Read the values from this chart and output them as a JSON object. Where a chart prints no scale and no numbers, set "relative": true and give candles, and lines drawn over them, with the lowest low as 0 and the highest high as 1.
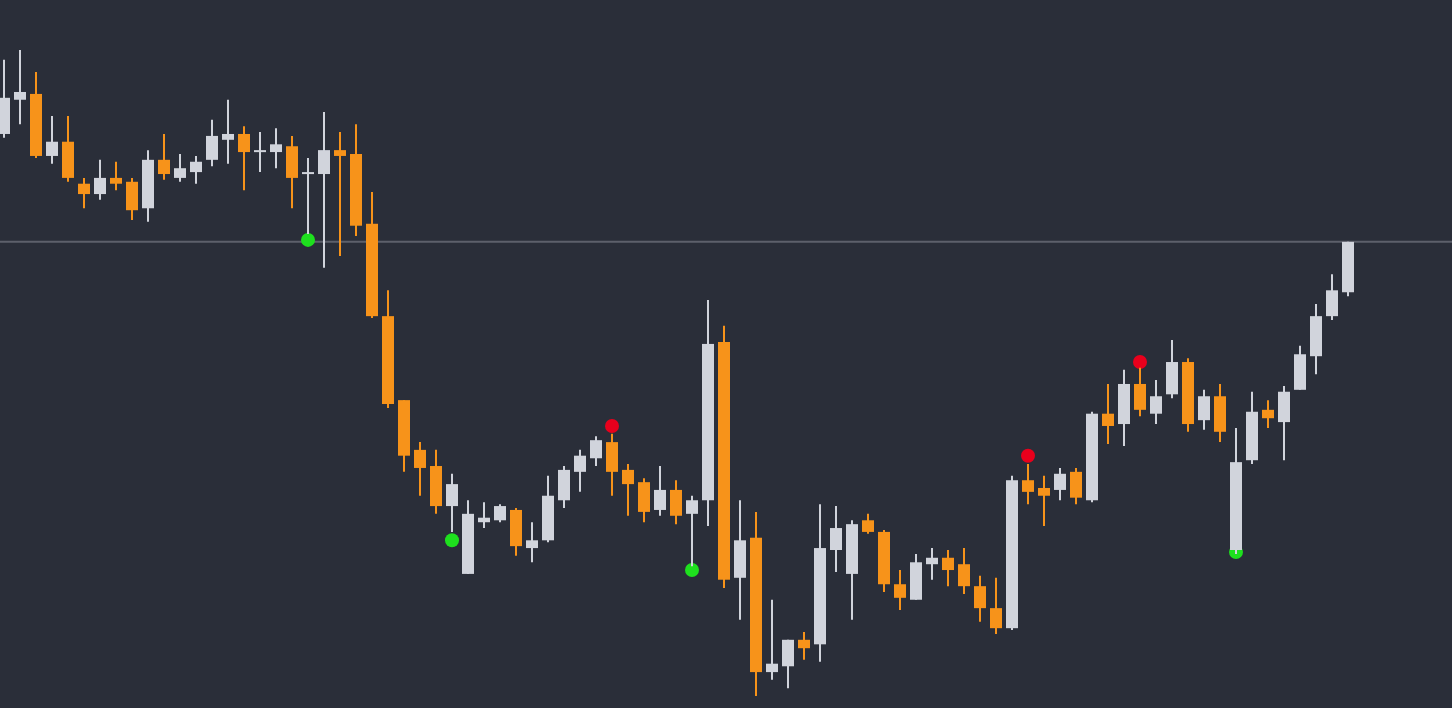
{
  "chart_data": {
    "type": "candlestick",
    "relative": true,
    "marker": "circle",
    "categories": [
      null,
      null,
      null,
      null,
      null,
      null,
      null,
      null,
      null,
      null,
      null,
      null,
      null,
      null,
      null,
      null,
      null,
      null,
      null,
      null,
      null,
      null,
      null,
      null,
      null,
      null,
      null,
      null,
      null,
      null,
      null,
      null,
      null,
      null,
      null,
      null,
      null,
      null,
      null,
      null,
      null,
      null,
      null,
      null,
      null,
      null,
      null,
      null,
      null,
      null,
      null,
      null,
      null,
      null,
      null,
      null,
      null,
      null,
      null,
      null,
      null,
      null,
      null,
      null,
      null,
      null,
      null,
      null,
      null,
      null,
      null,
      null,
      null,
      null,
      null,
      null,
      null,
      null,
      null,
      null,
      null,
      null,
      null,
      null,
      null
    ],
    "ohlc": [
      [
        0.87,
        0.985,
        0.864,
        0.926
      ],
      [
        0.923,
        1,
        0.885,
        0.935
      ],
      [
        0.932,
        0.966,
        0.833,
        0.836
      ],
      [
        0.836,
        0.898,
        0.824,
        0.858
      ],
      [
        0.858,
        0.898,
        0.796,
        0.802
      ],
      [
        0.793,
        0.802,
        0.755,
        0.777
      ],
      [
        0.777,
        0.83,
        0.768,
        0.802
      ],
      [
        0.802,
        0.827,
        0.783,
        0.793
      ],
      [
        0.796,
        0.802,
        0.737,
        0.752
      ],
      [
        0.755,
        0.845,
        0.734,
        0.83
      ],
      [
        0.83,
        0.87,
        0.799,
        0.808
      ],
      [
        0.802,
        0.839,
        0.796,
        0.817
      ],
      [
        0.811,
        0.836,
        0.793,
        0.827
      ],
      [
        0.83,
        0.892,
        0.82,
        0.867
      ],
      [
        0.861,
        0.923,
        0.824,
        0.87
      ],
      [
        0.87,
        0.882,
        0.783,
        0.842
      ],
      [
        0.842,
        0.873,
        0.811,
        0.845
      ],
      [
        0.842,
        0.879,
        0.817,
        0.854
      ],
      [
        0.851,
        0.867,
        0.755,
        0.802
      ],
      [
        0.808,
        0.833,
        0.715,
        0.811
      ],
      [
        0.808,
        0.904,
        0.663,
        0.845
      ],
      [
        0.845,
        0.873,
        0.681,
        0.836
      ],
      [
        0.839,
        0.885,
        0.712,
        0.728
      ],
      [
        0.731,
        0.78,
        0.585,
        0.588
      ],
      [
        0.588,
        0.628,
        0.446,
        0.452
      ],
      [
        0.458,
        0.458,
        0.347,
        0.372
      ],
      [
        0.381,
        0.393,
        0.31,
        0.353
      ],
      [
        0.356,
        0.381,
        0.282,
        0.294
      ],
      [
        0.294,
        0.344,
        0.254,
        0.328
      ],
      [
        0.189,
        0.303,
        0.189,
        0.282
      ],
      [
        0.269,
        0.3,
        0.26,
        0.276
      ],
      [
        0.272,
        0.297,
        0.269,
        0.294
      ],
      [
        0.288,
        0.291,
        0.217,
        0.232
      ],
      [
        0.229,
        0.269,
        0.207,
        0.241
      ],
      [
        0.241,
        0.341,
        0.238,
        0.31
      ],
      [
        0.303,
        0.356,
        0.291,
        0.35
      ],
      [
        0.347,
        0.381,
        0.316,
        0.372
      ],
      [
        0.368,
        0.402,
        0.356,
        0.396
      ],
      [
        0.393,
        0.406,
        0.31,
        0.347
      ],
      [
        0.35,
        0.359,
        0.279,
        0.328
      ],
      [
        0.331,
        0.337,
        0.269,
        0.285
      ],
      [
        0.288,
        0.356,
        0.279,
        0.319
      ],
      [
        0.319,
        0.334,
        0.266,
        0.279
      ],
      [
        0.282,
        0.31,
        0.201,
        0.303
      ],
      [
        0.303,
        0.613,
        0.263,
        0.545
      ],
      [
        0.548,
        0.573,
        0.167,
        0.18
      ],
      [
        0.183,
        0.303,
        0.118,
        0.241
      ],
      [
        0.245,
        0.285,
        0,
        0.037
      ],
      [
        0.037,
        0.149,
        0.025,
        0.05
      ],
      [
        0.046,
        0.087,
        0.012,
        0.087
      ],
      [
        0.087,
        0.099,
        0.056,
        0.074
      ],
      [
        0.08,
        0.297,
        0.053,
        0.229
      ],
      [
        0.226,
        0.294,
        0.192,
        0.26
      ],
      [
        0.189,
        0.272,
        0.118,
        0.266
      ],
      [
        0.272,
        0.282,
        0.251,
        0.254
      ],
      [
        0.254,
        0.257,
        0.161,
        0.173
      ],
      [
        0.173,
        0.195,
        0.133,
        0.152
      ],
      [
        0.149,
        0.22,
        0.149,
        0.207
      ],
      [
        0.204,
        0.229,
        0.18,
        0.214
      ],
      [
        0.214,
        0.226,
        0.17,
        0.195
      ],
      [
        0.204,
        0.229,
        0.158,
        0.17
      ],
      [
        0.17,
        0.186,
        0.115,
        0.136
      ],
      [
        0.136,
        0.183,
        0.096,
        0.105
      ],
      [
        0.105,
        0.341,
        0.102,
        0.334
      ],
      [
        0.334,
        0.359,
        0.297,
        0.316
      ],
      [
        0.322,
        0.341,
        0.263,
        0.31
      ],
      [
        0.319,
        0.353,
        0.303,
        0.344
      ],
      [
        0.347,
        0.353,
        0.297,
        0.307
      ],
      [
        0.303,
        0.44,
        0.3,
        0.437
      ],
      [
        0.437,
        0.483,
        0.39,
        0.418
      ],
      [
        0.421,
        0.505,
        0.387,
        0.483
      ],
      [
        0.483,
        0.508,
        0.433,
        0.443
      ],
      [
        0.437,
        0.489,
        0.421,
        0.464
      ],
      [
        0.467,
        0.551,
        0.461,
        0.517
      ],
      [
        0.517,
        0.523,
        0.409,
        0.421
      ],
      [
        0.427,
        0.474,
        0.412,
        0.464
      ],
      [
        0.464,
        0.483,
        0.393,
        0.409
      ],
      [
        0.226,
        0.415,
        0.22,
        0.362
      ],
      [
        0.365,
        0.471,
        0.359,
        0.44
      ],
      [
        0.443,
        0.458,
        0.415,
        0.43
      ],
      [
        0.424,
        0.48,
        0.365,
        0.471
      ],
      [
        0.474,
        0.542,
        0.474,
        0.529
      ],
      [
        0.526,
        0.607,
        0.498,
        0.588
      ],
      [
        0.588,
        0.653,
        0.582,
        0.628
      ],
      [
        0.625,
        0.703,
        0.619,
        0.703
      ]
    ],
    "colors": [
      "#d1d4dc",
      "#d1d4dc",
      "#f7931a",
      "#d1d4dc",
      "#f7931a",
      "#f7931a",
      "#d1d4dc",
      "#f7931a",
      "#f7931a",
      "#d1d4dc",
      "#f7931a",
      "#d1d4dc",
      "#d1d4dc",
      "#d1d4dc",
      "#d1d4dc",
      "#f7931a",
      "#d1d4dc",
      "#d1d4dc",
      "#f7931a",
      "#d1d4dc",
      "#d1d4dc",
      "#f7931a",
      "#f7931a",
      "#f7931a",
      "#f7931a",
      "#f7931a",
      "#f7931a",
      "#f7931a",
      "#d1d4dc",
      "#d1d4dc",
      "#d1d4dc",
      "#d1d4dc",
      "#f7931a",
      "#d1d4dc",
      "#d1d4dc",
      "#d1d4dc",
      "#d1d4dc",
      "#d1d4dc",
      "#f7931a",
      "#f7931a",
      "#f7931a",
      "#d1d4dc",
      "#f7931a",
      "#d1d4dc",
      "#d1d4dc",
      "#f7931a",
      "#d1d4dc",
      "#f7931a",
      "#d1d4dc",
      "#d1d4dc",
      "#f7931a",
      "#d1d4dc",
      "#d1d4dc",
      "#d1d4dc",
      "#f7931a",
      "#f7931a",
      "#f7931a",
      "#d1d4dc",
      "#d1d4dc",
      "#f7931a",
      "#f7931a",
      "#f7931a",
      "#f7931a",
      "#d1d4dc",
      "#f7931a",
      "#f7931a",
      "#d1d4dc",
      "#f7931a",
      "#d1d4dc",
      "#f7931a",
      "#d1d4dc",
      "#f7931a",
      "#d1d4dc",
      "#d1d4dc",
      "#f7931a",
      "#d1d4dc",
      "#f7931a",
      "#d1d4dc",
      "#d1d4dc",
      "#f7931a",
      "#d1d4dc",
      "#d1d4dc",
      "#d1d4dc",
      "#d1d4dc",
      "#d1d4dc"
    ],
    "series": [
      {
        "type": "scatter",
        "color": "#1ee01e",
        "values": [
          null,
          null,
          null,
          null,
          null,
          null,
          null,
          null,
          null,
          null,
          null,
          null,
          null,
          null,
          null,
          null,
          null,
          null,
          null,
          0.706,
          null,
          null,
          null,
          null,
          null,
          null,
          null,
          null,
          0.241,
          null,
          null,
          null,
          null,
          null,
          null,
          null,
          null,
          null,
          null,
          null,
          null,
          null,
          null,
          0.195,
          null,
          null,
          null,
          null,
          null,
          null,
          null,
          null,
          null,
          null,
          null,
          null,
          null,
          null,
          null,
          null,
          null,
          null,
          null,
          null,
          null,
          null,
          null,
          null,
          null,
          null,
          null,
          null,
          null,
          null,
          null,
          null,
          null,
          0.223,
          null,
          null,
          null,
          null,
          null,
          null,
          null
        ]
      },
      {
        "type": "scatter",
        "color": "#e8001c",
        "values": [
          null,
          null,
          null,
          null,
          null,
          null,
          null,
          null,
          null,
          null,
          null,
          null,
          null,
          null,
          null,
          null,
          null,
          null,
          null,
          null,
          null,
          null,
          null,
          null,
          null,
          null,
          null,
          null,
          null,
          null,
          null,
          null,
          null,
          null,
          null,
          null,
          null,
          null,
          0.418,
          null,
          null,
          null,
          null,
          null,
          null,
          null,
          null,
          null,
          null,
          null,
          null,
          null,
          null,
          null,
          null,
          null,
          null,
          null,
          null,
          null,
          null,
          null,
          null,
          null,
          0.372,
          null,
          null,
          null,
          null,
          null,
          null,
          0.517,
          null,
          null,
          null,
          null,
          null,
          null,
          null,
          null,
          null,
          null,
          null,
          null,
          null
        ]
      }
    ],
    "ref_lines": [
      {
        "axis": "y",
        "value": 0.703,
        "color": "#5d606b"
      }
    ]
  }
}
